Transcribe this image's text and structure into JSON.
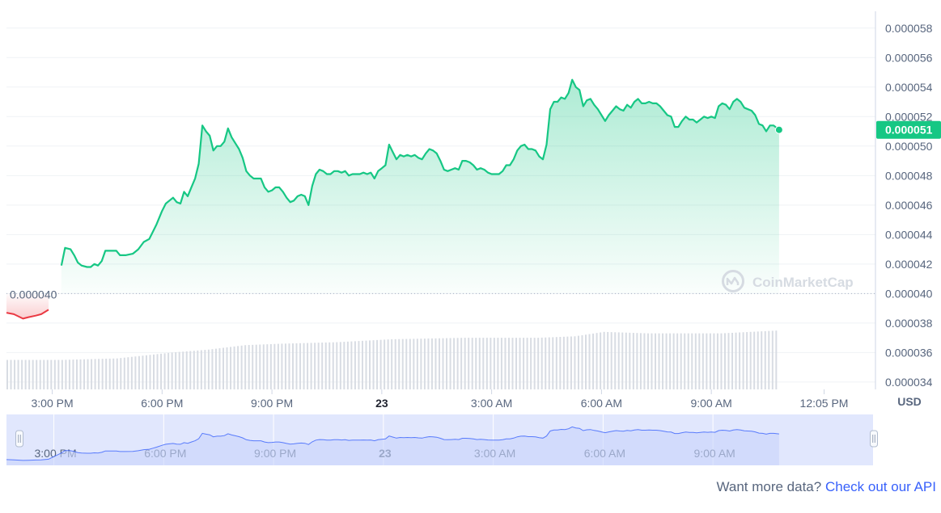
{
  "chart_data": {
    "type": "area",
    "currency_label": "USD",
    "yticks": [
      "0.000058",
      "0.000056",
      "0.000054",
      "0.000052",
      "0.000050",
      "0.000048",
      "0.000046",
      "0.000044",
      "0.000042",
      "0.000040",
      "0.000038",
      "0.000036",
      "0.000034"
    ],
    "ylim": [
      3.35e-05,
      5.87e-05
    ],
    "baseline": {
      "value": 4e-05,
      "label": "0.000040"
    },
    "current": {
      "value": 5.11e-05,
      "label": "0.000051"
    },
    "xticks": [
      {
        "t": 1.25,
        "label": "3:00 PM",
        "bold": false
      },
      {
        "t": 4.25,
        "label": "6:00 PM",
        "bold": false
      },
      {
        "t": 7.25,
        "label": "9:00 PM",
        "bold": false
      },
      {
        "t": 10.25,
        "label": "23",
        "bold": true
      },
      {
        "t": 13.25,
        "label": "3:00 AM",
        "bold": false
      },
      {
        "t": 16.25,
        "label": "6:00 AM",
        "bold": false
      },
      {
        "t": 19.25,
        "label": "9:00 AM",
        "bold": false
      },
      {
        "t": 22.33,
        "label": "12:05 PM",
        "bold": false
      }
    ],
    "xlim": [
      0,
      23.6
    ],
    "series_below_baseline": [
      [
        0.0,
        3.87e-05
      ],
      [
        0.2,
        3.86e-05
      ],
      [
        0.45,
        3.83e-05
      ],
      [
        0.6,
        3.84e-05
      ],
      [
        0.8,
        3.85e-05
      ],
      [
        0.95,
        3.86e-05
      ],
      [
        1.15,
        3.89e-05
      ]
    ],
    "series": [
      [
        1.5,
        4.19e-05
      ],
      [
        1.6,
        4.31e-05
      ],
      [
        1.75,
        4.3e-05
      ],
      [
        1.85,
        4.26e-05
      ],
      [
        1.95,
        4.21e-05
      ],
      [
        2.05,
        4.19e-05
      ],
      [
        2.2,
        4.18e-05
      ],
      [
        2.3,
        4.18e-05
      ],
      [
        2.4,
        4.2e-05
      ],
      [
        2.5,
        4.19e-05
      ],
      [
        2.6,
        4.22e-05
      ],
      [
        2.7,
        4.29e-05
      ],
      [
        2.85,
        4.29e-05
      ],
      [
        3.0,
        4.29e-05
      ],
      [
        3.1,
        4.26e-05
      ],
      [
        3.25,
        4.26e-05
      ],
      [
        3.45,
        4.27e-05
      ],
      [
        3.6,
        4.3e-05
      ],
      [
        3.75,
        4.35e-05
      ],
      [
        3.9,
        4.37e-05
      ],
      [
        4.0,
        4.42e-05
      ],
      [
        4.1,
        4.47e-05
      ],
      [
        4.25,
        4.56e-05
      ],
      [
        4.35,
        4.61e-05
      ],
      [
        4.45,
        4.63e-05
      ],
      [
        4.55,
        4.65e-05
      ],
      [
        4.65,
        4.62e-05
      ],
      [
        4.75,
        4.61e-05
      ],
      [
        4.85,
        4.69e-05
      ],
      [
        4.95,
        4.66e-05
      ],
      [
        5.05,
        4.72e-05
      ],
      [
        5.15,
        4.78e-05
      ],
      [
        5.25,
        4.88e-05
      ],
      [
        5.35,
        5.14e-05
      ],
      [
        5.45,
        5.1e-05
      ],
      [
        5.55,
        5.07e-05
      ],
      [
        5.65,
        4.97e-05
      ],
      [
        5.75,
        5e-05
      ],
      [
        5.85,
        5e-05
      ],
      [
        5.95,
        5.03e-05
      ],
      [
        6.05,
        5.12e-05
      ],
      [
        6.15,
        5.06e-05
      ],
      [
        6.25,
        5.02e-05
      ],
      [
        6.35,
        4.98e-05
      ],
      [
        6.45,
        4.92e-05
      ],
      [
        6.55,
        4.83e-05
      ],
      [
        6.65,
        4.8e-05
      ],
      [
        6.75,
        4.78e-05
      ],
      [
        6.85,
        4.78e-05
      ],
      [
        6.95,
        4.78e-05
      ],
      [
        7.05,
        4.72e-05
      ],
      [
        7.15,
        4.69e-05
      ],
      [
        7.25,
        4.7e-05
      ],
      [
        7.35,
        4.72e-05
      ],
      [
        7.45,
        4.72e-05
      ],
      [
        7.55,
        4.69e-05
      ],
      [
        7.65,
        4.65e-05
      ],
      [
        7.75,
        4.62e-05
      ],
      [
        7.85,
        4.63e-05
      ],
      [
        7.95,
        4.66e-05
      ],
      [
        8.05,
        4.67e-05
      ],
      [
        8.15,
        4.66e-05
      ],
      [
        8.25,
        4.6e-05
      ],
      [
        8.35,
        4.73e-05
      ],
      [
        8.45,
        4.81e-05
      ],
      [
        8.55,
        4.84e-05
      ],
      [
        8.65,
        4.83e-05
      ],
      [
        8.75,
        4.81e-05
      ],
      [
        8.85,
        4.81e-05
      ],
      [
        8.95,
        4.83e-05
      ],
      [
        9.05,
        4.83e-05
      ],
      [
        9.15,
        4.82e-05
      ],
      [
        9.25,
        4.83e-05
      ],
      [
        9.35,
        4.8e-05
      ],
      [
        9.45,
        4.81e-05
      ],
      [
        9.55,
        4.81e-05
      ],
      [
        9.65,
        4.81e-05
      ],
      [
        9.75,
        4.82e-05
      ],
      [
        9.85,
        4.81e-05
      ],
      [
        9.95,
        4.82e-05
      ],
      [
        10.05,
        4.78e-05
      ],
      [
        10.15,
        4.83e-05
      ],
      [
        10.25,
        4.85e-05
      ],
      [
        10.35,
        4.87e-05
      ],
      [
        10.45,
        5.01e-05
      ],
      [
        10.55,
        4.96e-05
      ],
      [
        10.65,
        4.91e-05
      ],
      [
        10.75,
        4.94e-05
      ],
      [
        10.85,
        4.93e-05
      ],
      [
        10.95,
        4.94e-05
      ],
      [
        11.05,
        4.93e-05
      ],
      [
        11.15,
        4.94e-05
      ],
      [
        11.25,
        4.92e-05
      ],
      [
        11.35,
        4.91e-05
      ],
      [
        11.45,
        4.95e-05
      ],
      [
        11.55,
        4.98e-05
      ],
      [
        11.65,
        4.97e-05
      ],
      [
        11.75,
        4.95e-05
      ],
      [
        11.85,
        4.9e-05
      ],
      [
        11.95,
        4.84e-05
      ],
      [
        12.05,
        4.83e-05
      ],
      [
        12.15,
        4.84e-05
      ],
      [
        12.25,
        4.85e-05
      ],
      [
        12.35,
        4.84e-05
      ],
      [
        12.45,
        4.9e-05
      ],
      [
        12.55,
        4.9e-05
      ],
      [
        12.65,
        4.89e-05
      ],
      [
        12.75,
        4.87e-05
      ],
      [
        12.85,
        4.84e-05
      ],
      [
        12.95,
        4.85e-05
      ],
      [
        13.05,
        4.84e-05
      ],
      [
        13.15,
        4.82e-05
      ],
      [
        13.25,
        4.81e-05
      ],
      [
        13.35,
        4.81e-05
      ],
      [
        13.45,
        4.81e-05
      ],
      [
        13.55,
        4.83e-05
      ],
      [
        13.65,
        4.87e-05
      ],
      [
        13.75,
        4.87e-05
      ],
      [
        13.85,
        4.91e-05
      ],
      [
        13.95,
        4.97e-05
      ],
      [
        14.05,
        5e-05
      ],
      [
        14.15,
        5.01e-05
      ],
      [
        14.25,
        4.98e-05
      ],
      [
        14.35,
        4.98e-05
      ],
      [
        14.45,
        4.97e-05
      ],
      [
        14.55,
        4.93e-05
      ],
      [
        14.65,
        4.91e-05
      ],
      [
        14.75,
        5.01e-05
      ],
      [
        14.85,
        5.25e-05
      ],
      [
        14.95,
        5.3e-05
      ],
      [
        15.05,
        5.3e-05
      ],
      [
        15.15,
        5.33e-05
      ],
      [
        15.25,
        5.32e-05
      ],
      [
        15.35,
        5.36e-05
      ],
      [
        15.45,
        5.45e-05
      ],
      [
        15.55,
        5.4e-05
      ],
      [
        15.65,
        5.38e-05
      ],
      [
        15.75,
        5.27e-05
      ],
      [
        15.85,
        5.31e-05
      ],
      [
        15.95,
        5.32e-05
      ],
      [
        16.05,
        5.28e-05
      ],
      [
        16.15,
        5.25e-05
      ],
      [
        16.25,
        5.21e-05
      ],
      [
        16.35,
        5.17e-05
      ],
      [
        16.45,
        5.21e-05
      ],
      [
        16.55,
        5.24e-05
      ],
      [
        16.65,
        5.27e-05
      ],
      [
        16.75,
        5.25e-05
      ],
      [
        16.85,
        5.24e-05
      ],
      [
        16.95,
        5.28e-05
      ],
      [
        17.05,
        5.26e-05
      ],
      [
        17.15,
        5.3e-05
      ],
      [
        17.25,
        5.32e-05
      ],
      [
        17.35,
        5.29e-05
      ],
      [
        17.45,
        5.29e-05
      ],
      [
        17.55,
        5.3e-05
      ],
      [
        17.65,
        5.29e-05
      ],
      [
        17.75,
        5.29e-05
      ],
      [
        17.85,
        5.27e-05
      ],
      [
        17.95,
        5.24e-05
      ],
      [
        18.05,
        5.21e-05
      ],
      [
        18.15,
        5.2e-05
      ],
      [
        18.25,
        5.13e-05
      ],
      [
        18.35,
        5.13e-05
      ],
      [
        18.45,
        5.17e-05
      ],
      [
        18.55,
        5.2e-05
      ],
      [
        18.65,
        5.18e-05
      ],
      [
        18.75,
        5.18e-05
      ],
      [
        18.85,
        5.16e-05
      ],
      [
        18.95,
        5.18e-05
      ],
      [
        19.05,
        5.2e-05
      ],
      [
        19.15,
        5.19e-05
      ],
      [
        19.25,
        5.2e-05
      ],
      [
        19.35,
        5.19e-05
      ],
      [
        19.45,
        5.27e-05
      ],
      [
        19.55,
        5.29e-05
      ],
      [
        19.65,
        5.28e-05
      ],
      [
        19.75,
        5.25e-05
      ],
      [
        19.85,
        5.3e-05
      ],
      [
        19.95,
        5.32e-05
      ],
      [
        20.05,
        5.3e-05
      ],
      [
        20.15,
        5.26e-05
      ],
      [
        20.25,
        5.25e-05
      ],
      [
        20.35,
        5.24e-05
      ],
      [
        20.45,
        5.21e-05
      ],
      [
        20.55,
        5.15e-05
      ],
      [
        20.65,
        5.14e-05
      ],
      [
        20.75,
        5.1e-05
      ],
      [
        20.85,
        5.14e-05
      ],
      [
        20.95,
        5.14e-05
      ],
      [
        21.1,
        5.11e-05
      ]
    ],
    "volume": [
      [
        0.0,
        3.55e-05
      ],
      [
        1.5,
        3.55e-05
      ],
      [
        3.0,
        3.56e-05
      ],
      [
        4.5,
        3.6e-05
      ],
      [
        5.5,
        3.62e-05
      ],
      [
        6.5,
        3.65e-05
      ],
      [
        7.5,
        3.66e-05
      ],
      [
        9.0,
        3.67e-05
      ],
      [
        10.5,
        3.69e-05
      ],
      [
        12.5,
        3.7e-05
      ],
      [
        14.5,
        3.7e-05
      ],
      [
        15.5,
        3.71e-05
      ],
      [
        16.3,
        3.74e-05
      ],
      [
        17.5,
        3.73e-05
      ],
      [
        19.5,
        3.73e-05
      ],
      [
        21.1,
        3.75e-05
      ]
    ],
    "navigator": {
      "ticks": [
        {
          "t": 1.25,
          "label": "3:00 PM",
          "bold": false
        },
        {
          "t": 4.25,
          "label": "6:00 PM",
          "bold": false
        },
        {
          "t": 7.25,
          "label": "9:00 PM",
          "bold": false
        },
        {
          "t": 10.25,
          "label": "23",
          "bold": true
        },
        {
          "t": 13.25,
          "label": "3:00 AM",
          "bold": false
        },
        {
          "t": 16.25,
          "label": "6:00 AM",
          "bold": false
        },
        {
          "t": 19.25,
          "label": "9:00 AM",
          "bold": false
        }
      ]
    },
    "colors": {
      "up": "#16c784",
      "down": "#ea3943",
      "fill_top": "#b7ecd4",
      "volume": "#d8dce3",
      "navigator_bg": "#e1e7fd",
      "navigator_line": "#3861fb",
      "current_label_bg": "#16c784",
      "grid": "#eff2f5"
    }
  },
  "watermark": {
    "text": "CoinMarketCap",
    "icon": "coinmarketcap-logo-icon"
  },
  "footer": {
    "prefix": "Want more data?",
    "link": "Check out our API"
  }
}
